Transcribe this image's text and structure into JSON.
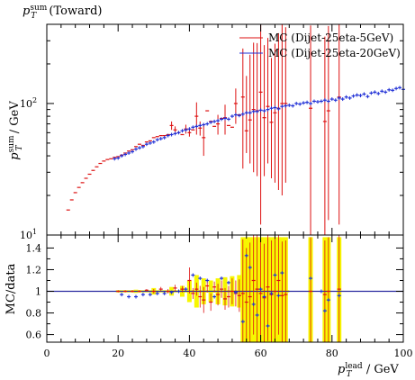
{
  "title": "p_T^sum (Toward)",
  "title_main": "p",
  "title_sup": "sum",
  "title_sub": "T",
  "title_rest": " (Toward)",
  "colors": {
    "red": "#dd1111",
    "blue": "#1f2fd6",
    "yellow": "#f7f700",
    "ref": "#2a2aa0"
  },
  "chart_data": [
    {
      "type": "scatter",
      "name": "main",
      "ylabel_main": "p",
      "ylabel_sup": "sum",
      "ylabel_sub": "T",
      "ylabel_rest": " / GeV",
      "yscale": "log",
      "xlim": [
        0,
        100
      ],
      "ylim": [
        10,
        400
      ],
      "ytick_labels": [
        "10^1",
        "10^2"
      ],
      "ytick_text": [
        {
          "base": "10",
          "exp": "1"
        },
        {
          "base": "10",
          "exp": "2"
        }
      ],
      "legend": {
        "placement": "top-right"
      },
      "series": [
        {
          "name": "MC (Dijet-25eta-5GeV)",
          "color": "#dd1111",
          "x": [
            6,
            7,
            8,
            9,
            10,
            11,
            12,
            13,
            14,
            15,
            16,
            17,
            18,
            19,
            20,
            21,
            22,
            23,
            24,
            25,
            26,
            27,
            28,
            29,
            30,
            31,
            32,
            33,
            34,
            35,
            36,
            37,
            38,
            39,
            40,
            41,
            42,
            43,
            44,
            45,
            46,
            47,
            48,
            49,
            50,
            51,
            52,
            53,
            54,
            55,
            56,
            57,
            58,
            59,
            60,
            61,
            62,
            63,
            64,
            65,
            66,
            67,
            74,
            78,
            79,
            82
          ],
          "y": [
            15.5,
            18.5,
            21,
            23,
            25,
            27,
            29,
            31,
            33,
            35,
            36.5,
            37.5,
            38,
            39,
            39.5,
            40.5,
            42,
            43.5,
            44.5,
            47,
            49,
            48,
            51,
            52,
            55,
            56,
            57,
            57,
            58,
            68,
            63,
            60,
            58,
            64,
            60,
            63,
            80,
            65,
            55,
            88,
            73,
            67,
            70,
            77,
            78,
            68,
            66,
            100,
            82,
            112,
            62,
            75,
            90,
            88,
            122,
            78,
            95,
            72,
            85,
            92,
            100,
            100,
            92,
            73,
            88,
            112
          ],
          "yerr_low": [
            0,
            0,
            0,
            0,
            0,
            0,
            0,
            0,
            0,
            0,
            0,
            0,
            0,
            0,
            0,
            0,
            0,
            0,
            0,
            0,
            0,
            0,
            0,
            0,
            0,
            0,
            0,
            0,
            0,
            5,
            4,
            0,
            0,
            5,
            4,
            0,
            22,
            8,
            15,
            0,
            0,
            0,
            12,
            0,
            20,
            0,
            0,
            30,
            0,
            80,
            20,
            40,
            60,
            60,
            110,
            50,
            60,
            45,
            60,
            70,
            80,
            75,
            85,
            65,
            75,
            100
          ],
          "yerr_high": [
            0,
            0,
            0,
            0,
            0,
            0,
            0,
            0,
            0,
            0,
            0,
            0,
            0,
            0,
            0,
            0,
            0,
            0,
            0,
            0,
            0,
            0,
            0,
            0,
            0,
            0,
            0,
            0,
            0,
            5,
            4,
            0,
            0,
            5,
            4,
            0,
            22,
            8,
            15,
            0,
            0,
            0,
            12,
            0,
            20,
            0,
            0,
            30,
            0,
            150,
            100,
            160,
            200,
            200,
            350,
            200,
            220,
            150,
            200,
            250,
            300,
            280,
            300,
            250,
            300,
            350
          ]
        },
        {
          "name": "MC (Dijet-25eta-20GeV)",
          "color": "#1f2fd6",
          "x": [
            19,
            20,
            21,
            22,
            23,
            24,
            25,
            26,
            27,
            28,
            29,
            30,
            31,
            32,
            33,
            34,
            35,
            36,
            37,
            38,
            39,
            40,
            41,
            42,
            43,
            44,
            45,
            46,
            47,
            48,
            49,
            50,
            51,
            52,
            53,
            54,
            55,
            56,
            57,
            58,
            59,
            60,
            61,
            62,
            63,
            64,
            65,
            66,
            67,
            68,
            69,
            70,
            71,
            72,
            73,
            74,
            75,
            76,
            77,
            78,
            79,
            80,
            81,
            82,
            83,
            84,
            85,
            86,
            87,
            88,
            89,
            90,
            91,
            92,
            93,
            94,
            95,
            96,
            97,
            98,
            99,
            100
          ],
          "y": [
            38,
            38.5,
            40,
            41,
            42,
            43,
            45,
            46,
            47,
            49,
            50,
            51,
            53,
            54,
            55,
            57,
            58,
            59,
            60,
            62,
            63,
            64,
            66,
            67,
            68,
            69,
            70,
            72,
            73,
            74,
            76,
            77,
            76,
            80,
            82,
            81,
            83,
            85,
            85,
            87,
            87,
            89,
            88,
            90,
            92,
            93,
            91,
            95,
            96,
            97,
            96,
            100,
            99,
            101,
            102,
            100,
            104,
            103,
            104,
            106,
            104,
            108,
            106,
            110,
            108,
            112,
            110,
            114,
            116,
            115,
            118,
            113,
            120,
            122,
            119,
            124,
            122,
            127,
            126,
            130,
            132,
            128
          ]
        }
      ]
    },
    {
      "type": "scatter",
      "name": "ratio",
      "ylabel": "MC/data",
      "xlabel_main": "p",
      "xlabel_sup": "lead",
      "xlabel_sub": "T",
      "xlabel_rest": " / GeV",
      "xlim": [
        0,
        100
      ],
      "ylim": [
        0.53,
        1.52
      ],
      "xticks": [
        0,
        20,
        40,
        60,
        80,
        100
      ],
      "xtick_labels": [
        "0",
        "20",
        "40",
        "60",
        "80",
        "100"
      ],
      "yticks": [
        0.6,
        0.8,
        1.0,
        1.2,
        1.4
      ],
      "ytick_labels": [
        "0.6",
        "0.8",
        "1",
        "1.2",
        "1.4"
      ],
      "reference": 1.0,
      "band": {
        "x": [
          20,
          25,
          30,
          35,
          38,
          40,
          42,
          44,
          46,
          48,
          50,
          52,
          54,
          55,
          56,
          57,
          58,
          59,
          60,
          61,
          62,
          63,
          64,
          65,
          66,
          67,
          68,
          73,
          74,
          75,
          77,
          78,
          79,
          80,
          81,
          82,
          83
        ],
        "half_width": [
          0.01,
          0.015,
          0.03,
          0.04,
          0.05,
          0.1,
          0.15,
          0.12,
          0.1,
          0.12,
          0.13,
          0.14,
          0.15,
          0.5,
          0.5,
          0.5,
          0.5,
          0.5,
          0.5,
          0.5,
          0.5,
          0.5,
          0.5,
          0.5,
          0.5,
          0.5,
          0.0,
          0.0,
          0.5,
          0.0,
          0.0,
          0.5,
          0.5,
          0.0,
          0.0,
          0.5,
          0.0
        ]
      },
      "series": [
        {
          "name": "ratio-red",
          "color": "#dd1111",
          "x": [
            20,
            22,
            24,
            26,
            28,
            30,
            32,
            34,
            36,
            38,
            40,
            41,
            42,
            43,
            44,
            45,
            46,
            47,
            48,
            49,
            50,
            51,
            52,
            53,
            54,
            55,
            56,
            57,
            58,
            59,
            60,
            61,
            62,
            63,
            64,
            65,
            66,
            67,
            74,
            78,
            79,
            82
          ],
          "y": [
            1.0,
            1.0,
            1.0,
            1.0,
            1.01,
            1.0,
            1.02,
            1.0,
            1.03,
            1.02,
            1.1,
            0.98,
            1.02,
            0.95,
            0.92,
            1.05,
            0.9,
            1.04,
            0.97,
            1.02,
            0.93,
            0.95,
            1.0,
            0.98,
            0.96,
            0.98,
            0.9,
            0.95,
            1.1,
            1.02,
            0.98,
            0.94,
            1.04,
            0.97,
            1.0,
            1.1,
            0.96,
            0.97,
            1.0,
            0.97,
            1.0,
            1.02
          ],
          "yerr": [
            0.01,
            0.01,
            0.01,
            0.01,
            0.01,
            0.02,
            0.02,
            0.02,
            0.03,
            0.03,
            0.12,
            0.05,
            0.06,
            0.1,
            0.12,
            0.06,
            0.08,
            0.05,
            0.1,
            0.08,
            0.1,
            0.1,
            0.12,
            0.12,
            0.15,
            0.5,
            0.5,
            0.5,
            0.5,
            0.5,
            0.5,
            0.5,
            0.5,
            0.5,
            0.5,
            0.5,
            0.5,
            0.5,
            0.5,
            0.5,
            0.5,
            0.5
          ]
        },
        {
          "name": "ratio-blue",
          "color": "#1f2fd6",
          "x": [
            21,
            23,
            25,
            27,
            29,
            31,
            33,
            35,
            37,
            39,
            41,
            43,
            45,
            47,
            49,
            51,
            53,
            55,
            56,
            57,
            58,
            59,
            60,
            61,
            62,
            63,
            64,
            65,
            66,
            74,
            77,
            78,
            79,
            82
          ],
          "y": [
            0.97,
            0.95,
            0.95,
            0.97,
            0.97,
            0.98,
            0.98,
            0.99,
            1.0,
            1.02,
            1.15,
            1.12,
            1.1,
            0.95,
            1.12,
            1.08,
            0.99,
            0.72,
            1.33,
            1.22,
            0.88,
            0.78,
            1.02,
            0.95,
            0.68,
            0.98,
            1.15,
            0.96,
            1.17,
            1.12,
            1.0,
            0.82,
            0.92,
            0.96
          ],
          "yerr": [
            0,
            0,
            0,
            0,
            0,
            0,
            0,
            0,
            0,
            0,
            0,
            0,
            0,
            0,
            0,
            0,
            0,
            0,
            0,
            0,
            0,
            0,
            0,
            0,
            0,
            0,
            0,
            0,
            0,
            0,
            0,
            0,
            0,
            0
          ]
        }
      ]
    }
  ]
}
